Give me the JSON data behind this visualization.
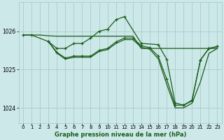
{
  "background_color": "#cce8e8",
  "grid_color": "#aacccc",
  "line_color": "#1a5c1a",
  "title": "Graphe pression niveau de la mer (hPa)",
  "xlim": [
    -0.5,
    23.5
  ],
  "ylim": [
    1023.6,
    1026.75
  ],
  "yticks": [
    1024,
    1025,
    1026
  ],
  "xticks": [
    0,
    1,
    2,
    3,
    4,
    5,
    6,
    7,
    8,
    9,
    10,
    11,
    12,
    13,
    14,
    15,
    16,
    17,
    18,
    19,
    20,
    21,
    22,
    23
  ],
  "series": [
    {
      "x": [
        0,
        1,
        2,
        3,
        4,
        5,
        6,
        7,
        8,
        9,
        10,
        11,
        12,
        13,
        14,
        15,
        16,
        17,
        18,
        19,
        20,
        21,
        22,
        23
      ],
      "y": [
        1025.9,
        1025.9,
        1025.9,
        1025.88,
        1025.87,
        1025.87,
        1025.87,
        1025.87,
        1025.87,
        1025.87,
        1025.87,
        1025.87,
        1025.87,
        1025.87,
        1025.55,
        1025.55,
        1025.55,
        1025.55,
        1025.55,
        1025.55,
        1025.55,
        1025.55,
        1025.55,
        1025.55
      ],
      "has_markers": false
    },
    {
      "x": [
        0,
        1,
        3,
        4,
        5,
        6,
        7,
        8,
        9,
        10,
        11,
        12,
        14,
        16,
        17,
        18,
        19,
        20,
        21,
        22,
        23
      ],
      "y": [
        1025.9,
        1025.9,
        1025.73,
        1025.55,
        1025.55,
        1025.68,
        1025.68,
        1025.82,
        1026.0,
        1026.05,
        1026.3,
        1026.38,
        1025.68,
        1025.65,
        1025.27,
        1024.13,
        1024.07,
        1024.2,
        1025.25,
        1025.55,
        1025.6
      ],
      "has_markers": true
    },
    {
      "x": [
        3,
        4,
        5,
        6,
        7,
        8,
        9,
        10,
        11,
        12,
        13,
        14,
        15,
        16,
        17,
        18,
        19,
        20,
        21,
        22,
        23
      ],
      "y": [
        1025.73,
        1025.45,
        1025.3,
        1025.35,
        1025.35,
        1025.35,
        1025.5,
        1025.55,
        1025.72,
        1025.82,
        1025.82,
        1025.62,
        1025.57,
        1025.35,
        1024.75,
        1024.07,
        1024.07,
        1024.18,
        1025.25,
        1025.55,
        1025.6
      ],
      "has_markers": true
    },
    {
      "x": [
        3,
        4,
        5,
        6,
        7,
        8,
        9,
        10,
        11,
        12,
        13,
        14,
        15,
        16,
        17,
        18,
        19,
        20,
        21,
        22,
        23
      ],
      "y": [
        1025.73,
        1025.43,
        1025.27,
        1025.32,
        1025.32,
        1025.32,
        1025.47,
        1025.52,
        1025.68,
        1025.78,
        1025.78,
        1025.58,
        1025.53,
        1025.28,
        1024.62,
        1024.0,
        1024.0,
        1024.12,
        1024.68,
        1025.42,
        1025.55
      ],
      "has_markers": false
    }
  ]
}
